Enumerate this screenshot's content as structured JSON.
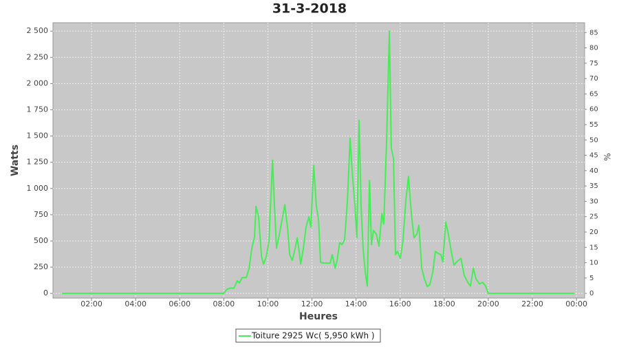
{
  "chart_data": {
    "type": "line",
    "title": "31-3-2018",
    "x_label": "Heures",
    "y_label": "Watts",
    "y2_label": "%",
    "x": [
      0.66,
      7.37,
      7.99,
      8.15,
      8.3,
      8.46,
      8.61,
      8.71,
      8.83,
      9.02,
      9.15,
      9.27,
      9.39,
      9.46,
      9.58,
      9.71,
      9.8,
      9.93,
      10.05,
      10.21,
      10.3,
      10.39,
      10.52,
      10.64,
      10.77,
      10.89,
      10.99,
      11.11,
      11.24,
      11.33,
      11.42,
      11.49,
      11.61,
      11.73,
      11.86,
      11.95,
      12.08,
      12.2,
      12.3,
      12.39,
      12.51,
      12.83,
      12.92,
      13.05,
      13.14,
      13.26,
      13.36,
      13.48,
      13.61,
      13.73,
      13.83,
      13.95,
      14.04,
      14.14,
      14.23,
      14.32,
      14.42,
      14.51,
      14.61,
      14.7,
      14.79,
      14.92,
      15.04,
      15.17,
      15.26,
      15.39,
      15.51,
      15.6,
      15.7,
      15.79,
      15.88,
      16.01,
      16.13,
      16.26,
      16.38,
      16.51,
      16.63,
      16.76,
      16.85,
      16.98,
      17.1,
      17.23,
      17.35,
      17.48,
      17.6,
      17.73,
      17.85,
      17.94,
      18.07,
      18.19,
      18.32,
      18.44,
      18.57,
      18.76,
      18.91,
      19.07,
      19.19,
      19.32,
      19.44,
      19.6,
      19.75,
      19.88,
      20.0,
      23.9
    ],
    "series": [
      {
        "name": "Toiture 2925 Wc( 5,950 kWh )",
        "color": "#44ee55",
        "values": [
          0,
          0,
          0,
          40,
          50,
          50,
          120,
          100,
          150,
          150,
          240,
          430,
          530,
          830,
          730,
          350,
          280,
          350,
          500,
          1270,
          830,
          430,
          560,
          700,
          845,
          630,
          370,
          315,
          430,
          530,
          400,
          280,
          430,
          630,
          730,
          630,
          1220,
          830,
          700,
          295,
          290,
          290,
          370,
          240,
          315,
          485,
          465,
          510,
          890,
          1480,
          1150,
          830,
          530,
          1650,
          830,
          430,
          200,
          70,
          1075,
          465,
          600,
          565,
          450,
          760,
          660,
          1480,
          2500,
          1385,
          1285,
          370,
          400,
          335,
          500,
          890,
          1115,
          760,
          530,
          565,
          650,
          240,
          140,
          65,
          85,
          200,
          400,
          380,
          370,
          300,
          680,
          565,
          400,
          270,
          300,
          335,
          170,
          105,
          70,
          240,
          140,
          90,
          105,
          70,
          0,
          0
        ]
      }
    ],
    "xlim": [
      0.25,
      24.37
    ],
    "xticks": [
      {
        "value": 2,
        "label": "02:00"
      },
      {
        "value": 4,
        "label": "04:00"
      },
      {
        "value": 6,
        "label": "06:00"
      },
      {
        "value": 8,
        "label": "08:00"
      },
      {
        "value": 10,
        "label": "10:00"
      },
      {
        "value": 12,
        "label": "12:00"
      },
      {
        "value": 14,
        "label": "14:00"
      },
      {
        "value": 16,
        "label": "16:00"
      },
      {
        "value": 18,
        "label": "18:00"
      },
      {
        "value": 20,
        "label": "20:00"
      },
      {
        "value": 22,
        "label": "22:00"
      },
      {
        "value": 24,
        "label": "00:00"
      }
    ],
    "ylim": [
      -45,
      2580
    ],
    "yticks": [
      0,
      250,
      500,
      750,
      {
        "value": 1000,
        "label": "1 000"
      },
      {
        "value": 1250,
        "label": "1 250"
      },
      {
        "value": 1500,
        "label": "1 500"
      },
      {
        "value": 1750,
        "label": "1 750"
      },
      {
        "value": 2000,
        "label": "2 000"
      },
      {
        "value": 2250,
        "label": "2 250"
      },
      {
        "value": 2500,
        "label": "2 500"
      }
    ],
    "y2lim": [
      -1.54,
      88.2
    ],
    "y2ticks": [
      0,
      5,
      10,
      15,
      20,
      25,
      30,
      35,
      40,
      45,
      50,
      55,
      60,
      65,
      70,
      75,
      80,
      85
    ],
    "grid": true,
    "legend": "bottom"
  }
}
